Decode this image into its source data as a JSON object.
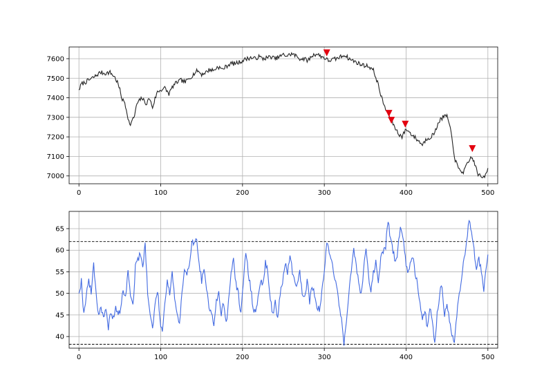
{
  "chart_data": [
    {
      "type": "line",
      "title": "",
      "xlabel": "",
      "ylabel": "",
      "xlim": [
        -12,
        512
      ],
      "ylim": [
        6960,
        7660
      ],
      "grid": true,
      "x_ticks": [
        0,
        100,
        200,
        300,
        400,
        500
      ],
      "y_ticks": [
        7000,
        7100,
        7200,
        7300,
        7400,
        7500,
        7600
      ],
      "colors": {
        "price": "#222222",
        "signal": "#e3000f"
      },
      "price_anchors": [
        [
          0,
          7440
        ],
        [
          3,
          7470
        ],
        [
          8,
          7480
        ],
        [
          14,
          7495
        ],
        [
          20,
          7510
        ],
        [
          26,
          7530
        ],
        [
          32,
          7525
        ],
        [
          38,
          7530
        ],
        [
          43,
          7510
        ],
        [
          47,
          7480
        ],
        [
          50,
          7440
        ],
        [
          53,
          7390
        ],
        [
          56,
          7375
        ],
        [
          59,
          7320
        ],
        [
          62,
          7260
        ],
        [
          65,
          7280
        ],
        [
          68,
          7310
        ],
        [
          71,
          7370
        ],
        [
          74,
          7385
        ],
        [
          77,
          7400
        ],
        [
          80,
          7380
        ],
        [
          83,
          7370
        ],
        [
          86,
          7400
        ],
        [
          90,
          7350
        ],
        [
          93,
          7395
        ],
        [
          96,
          7430
        ],
        [
          100,
          7440
        ],
        [
          105,
          7450
        ],
        [
          110,
          7420
        ],
        [
          115,
          7460
        ],
        [
          120,
          7480
        ],
        [
          125,
          7490
        ],
        [
          130,
          7480
        ],
        [
          135,
          7500
        ],
        [
          140,
          7520
        ],
        [
          145,
          7540
        ],
        [
          150,
          7520
        ],
        [
          155,
          7530
        ],
        [
          160,
          7545
        ],
        [
          165,
          7540
        ],
        [
          170,
          7560
        ],
        [
          175,
          7545
        ],
        [
          180,
          7560
        ],
        [
          185,
          7575
        ],
        [
          190,
          7575
        ],
        [
          195,
          7580
        ],
        [
          200,
          7590
        ],
        [
          205,
          7600
        ],
        [
          210,
          7605
        ],
        [
          215,
          7600
        ],
        [
          220,
          7610
        ],
        [
          225,
          7600
        ],
        [
          230,
          7605
        ],
        [
          235,
          7610
        ],
        [
          240,
          7600
        ],
        [
          245,
          7610
        ],
        [
          250,
          7620
        ],
        [
          255,
          7615
        ],
        [
          260,
          7625
        ],
        [
          265,
          7615
        ],
        [
          270,
          7600
        ],
        [
          275,
          7600
        ],
        [
          280,
          7590
        ],
        [
          285,
          7615
        ],
        [
          290,
          7625
        ],
        [
          295,
          7615
        ],
        [
          300,
          7605
        ],
        [
          305,
          7590
        ],
        [
          310,
          7595
        ],
        [
          315,
          7600
        ],
        [
          320,
          7610
        ],
        [
          325,
          7620
        ],
        [
          330,
          7600
        ],
        [
          335,
          7590
        ],
        [
          340,
          7580
        ],
        [
          345,
          7570
        ],
        [
          350,
          7565
        ],
        [
          355,
          7560
        ],
        [
          360,
          7540
        ],
        [
          365,
          7480
        ],
        [
          370,
          7400
        ],
        [
          375,
          7340
        ],
        [
          380,
          7300
        ],
        [
          385,
          7260
        ],
        [
          390,
          7220
        ],
        [
          395,
          7200
        ],
        [
          400,
          7240
        ],
        [
          405,
          7220
        ],
        [
          410,
          7200
        ],
        [
          415,
          7180
        ],
        [
          420,
          7160
        ],
        [
          425,
          7190
        ],
        [
          430,
          7200
        ],
        [
          435,
          7220
        ],
        [
          440,
          7280
        ],
        [
          445,
          7300
        ],
        [
          450,
          7310
        ],
        [
          455,
          7220
        ],
        [
          460,
          7080
        ],
        [
          465,
          7030
        ],
        [
          470,
          7020
        ],
        [
          475,
          7060
        ],
        [
          480,
          7100
        ],
        [
          484,
          7060
        ],
        [
          488,
          7010
        ],
        [
          492,
          6990
        ],
        [
          496,
          7000
        ],
        [
          500,
          7040
        ]
      ],
      "signals": [
        [
          303,
          7630
        ],
        [
          379,
          7320
        ],
        [
          382,
          7285
        ],
        [
          399,
          7265
        ],
        [
          481,
          7140
        ]
      ]
    },
    {
      "type": "line",
      "title": "",
      "xlabel": "",
      "ylabel": "",
      "xlim": [
        -12,
        512
      ],
      "ylim": [
        37.3,
        69
      ],
      "grid": true,
      "x_ticks": [
        0,
        100,
        200,
        300,
        400,
        500
      ],
      "y_ticks": [
        40,
        45,
        50,
        55,
        60,
        65
      ],
      "colors": {
        "indicator": "#4169e1",
        "threshold": "#000000"
      },
      "thresholds": [
        62,
        38.2
      ],
      "indicator_anchors": [
        [
          0,
          50
        ],
        [
          3,
          53
        ],
        [
          6,
          45
        ],
        [
          9,
          50
        ],
        [
          12,
          53
        ],
        [
          15,
          50
        ],
        [
          18,
          57
        ],
        [
          21,
          50
        ],
        [
          24,
          45
        ],
        [
          27,
          47
        ],
        [
          30,
          44
        ],
        [
          33,
          46
        ],
        [
          36,
          42
        ],
        [
          39,
          46
        ],
        [
          42,
          44
        ],
        [
          45,
          47
        ],
        [
          48,
          45
        ],
        [
          51,
          46
        ],
        [
          54,
          51
        ],
        [
          57,
          49
        ],
        [
          60,
          55
        ],
        [
          63,
          50
        ],
        [
          66,
          47
        ],
        [
          69,
          56
        ],
        [
          72,
          58
        ],
        [
          75,
          59
        ],
        [
          78,
          56
        ],
        [
          81,
          62
        ],
        [
          84,
          50
        ],
        [
          87,
          45
        ],
        [
          90,
          42
        ],
        [
          93,
          47
        ],
        [
          96,
          51
        ],
        [
          99,
          44
        ],
        [
          102,
          41
        ],
        [
          105,
          48
        ],
        [
          108,
          53
        ],
        [
          111,
          50
        ],
        [
          114,
          55
        ],
        [
          117,
          49
        ],
        [
          120,
          45
        ],
        [
          123,
          43
        ],
        [
          126,
          50
        ],
        [
          129,
          55
        ],
        [
          132,
          54
        ],
        [
          135,
          57
        ],
        [
          138,
          62
        ],
        [
          141,
          62
        ],
        [
          144,
          62
        ],
        [
          147,
          57
        ],
        [
          150,
          53
        ],
        [
          153,
          55
        ],
        [
          156,
          51
        ],
        [
          159,
          47
        ],
        [
          162,
          46
        ],
        [
          165,
          43
        ],
        [
          168,
          48
        ],
        [
          171,
          50
        ],
        [
          174,
          45
        ],
        [
          177,
          48
        ],
        [
          180,
          43
        ],
        [
          183,
          48
        ],
        [
          186,
          55
        ],
        [
          189,
          58
        ],
        [
          192,
          52
        ],
        [
          195,
          50
        ],
        [
          198,
          45
        ],
        [
          201,
          52
        ],
        [
          204,
          60
        ],
        [
          207,
          55
        ],
        [
          210,
          51
        ],
        [
          213,
          47
        ],
        [
          216,
          45
        ],
        [
          219,
          49
        ],
        [
          222,
          53
        ],
        [
          225,
          52
        ],
        [
          228,
          57
        ],
        [
          231,
          55
        ],
        [
          234,
          49
        ],
        [
          237,
          45
        ],
        [
          240,
          48
        ],
        [
          243,
          44
        ],
        [
          246,
          50
        ],
        [
          249,
          52
        ],
        [
          252,
          57
        ],
        [
          255,
          55
        ],
        [
          258,
          59
        ],
        [
          261,
          55
        ],
        [
          264,
          53
        ],
        [
          267,
          52
        ],
        [
          270,
          55
        ],
        [
          273,
          50
        ],
        [
          276,
          49
        ],
        [
          279,
          53
        ],
        [
          282,
          48
        ],
        [
          285,
          52
        ],
        [
          288,
          50
        ],
        [
          291,
          47
        ],
        [
          294,
          46
        ],
        [
          297,
          50
        ],
        [
          300,
          55
        ],
        [
          303,
          62
        ],
        [
          306,
          60
        ],
        [
          309,
          58
        ],
        [
          312,
          54
        ],
        [
          315,
          52
        ],
        [
          318,
          47
        ],
        [
          321,
          44
        ],
        [
          324,
          38.5
        ],
        [
          327,
          44
        ],
        [
          330,
          50
        ],
        [
          333,
          55
        ],
        [
          336,
          60
        ],
        [
          339,
          57
        ],
        [
          342,
          52
        ],
        [
          345,
          50
        ],
        [
          348,
          55
        ],
        [
          351,
          61
        ],
        [
          354,
          54
        ],
        [
          357,
          50
        ],
        [
          360,
          55
        ],
        [
          363,
          57
        ],
        [
          366,
          53
        ],
        [
          369,
          58
        ],
        [
          372,
          60
        ],
        [
          375,
          61
        ],
        [
          378,
          67
        ],
        [
          381,
          62
        ],
        [
          384,
          60
        ],
        [
          387,
          57
        ],
        [
          390,
          60
        ],
        [
          393,
          66
        ],
        [
          396,
          63
        ],
        [
          399,
          58
        ],
        [
          402,
          55
        ],
        [
          405,
          57
        ],
        [
          408,
          59
        ],
        [
          411,
          55
        ],
        [
          414,
          52
        ],
        [
          417,
          48
        ],
        [
          420,
          44
        ],
        [
          423,
          46
        ],
        [
          426,
          42
        ],
        [
          429,
          47
        ],
        [
          432,
          44
        ],
        [
          435,
          38.5
        ],
        [
          438,
          45
        ],
        [
          441,
          50
        ],
        [
          444,
          52
        ],
        [
          447,
          45
        ],
        [
          450,
          48
        ],
        [
          453,
          44
        ],
        [
          456,
          40
        ],
        [
          459,
          38.5
        ],
        [
          462,
          45
        ],
        [
          465,
          50
        ],
        [
          468,
          54
        ],
        [
          471,
          58
        ],
        [
          474,
          62
        ],
        [
          477,
          67
        ],
        [
          480,
          64
        ],
        [
          483,
          60
        ],
        [
          486,
          56
        ],
        [
          489,
          58
        ],
        [
          492,
          55
        ],
        [
          495,
          51
        ],
        [
          498,
          56
        ],
        [
          500,
          59
        ]
      ]
    }
  ]
}
